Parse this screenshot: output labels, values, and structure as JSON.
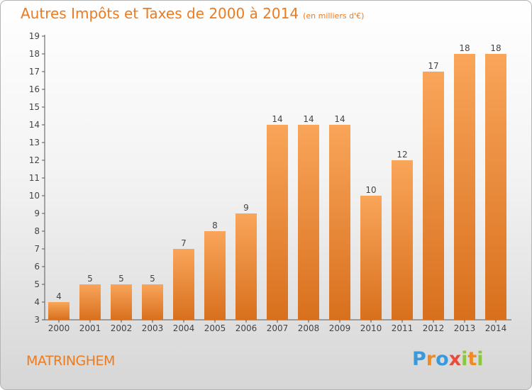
{
  "title": "Autres Impôts et Taxes de 2000 à 2014",
  "subtitle": "(en milliers d'€)",
  "town": "MATRINGHEM",
  "logo": {
    "letters": [
      "P",
      "r",
      "o",
      "x",
      "i",
      "t",
      "i"
    ],
    "colors": [
      "#3a9ad9",
      "#f08a24",
      "#3a9ad9",
      "#e84b3c",
      "#8cc63f",
      "#f08a24",
      "#8cc63f"
    ]
  },
  "colors": {
    "accent": "#ee7a1e",
    "bar_top": "#f9a55a",
    "bar_bottom": "#d8701d",
    "axis": "#555555"
  },
  "chart_data": {
    "type": "bar",
    "categories": [
      "2000",
      "2001",
      "2002",
      "2003",
      "2004",
      "2005",
      "2006",
      "2007",
      "2008",
      "2009",
      "2010",
      "2011",
      "2012",
      "2013",
      "2014"
    ],
    "values": [
      4,
      5,
      5,
      5,
      7,
      8,
      9,
      14,
      14,
      14,
      10,
      12,
      17,
      18,
      18
    ],
    "yticks": [
      "3",
      "4",
      "5",
      "6",
      "7",
      "8",
      "9",
      "10",
      "11",
      "12",
      "13",
      "14",
      "15",
      "16",
      "17",
      "18",
      "19"
    ],
    "ylim": [
      3,
      19
    ],
    "grid": false
  }
}
